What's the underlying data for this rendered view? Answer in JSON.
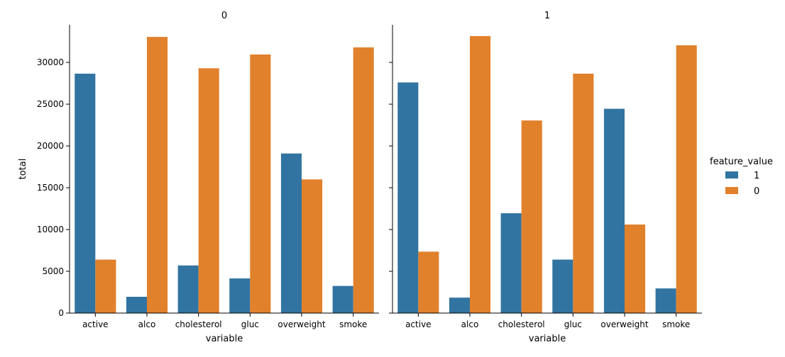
{
  "chart_data": [
    {
      "type": "bar",
      "title": "0",
      "xlabel": "variable",
      "ylabel": "total",
      "categories": [
        "active",
        "alco",
        "cholesterol",
        "gluc",
        "overweight",
        "smoke"
      ],
      "ylim": [
        0,
        34500
      ],
      "yticks": [
        0,
        5000,
        10000,
        15000,
        20000,
        25000,
        30000
      ],
      "series": [
        {
          "name": "1",
          "color": "#3274a1",
          "values": [
            28650,
            1950,
            5700,
            4150,
            19100,
            3250
          ]
        },
        {
          "name": "0",
          "color": "#e1812c",
          "values": [
            6400,
            33050,
            29300,
            30950,
            16000,
            31800
          ]
        }
      ]
    },
    {
      "type": "bar",
      "title": "1",
      "xlabel": "variable",
      "ylabel": "",
      "categories": [
        "active",
        "alco",
        "cholesterol",
        "gluc",
        "overweight",
        "smoke"
      ],
      "ylim": [
        0,
        34500
      ],
      "yticks": [
        0,
        5000,
        10000,
        15000,
        20000,
        25000,
        30000
      ],
      "series": [
        {
          "name": "1",
          "color": "#3274a1",
          "values": [
            27600,
            1850,
            11950,
            6400,
            24450,
            2950
          ]
        },
        {
          "name": "0",
          "color": "#e1812c",
          "values": [
            7350,
            33150,
            23050,
            28650,
            10600,
            32050
          ]
        }
      ]
    }
  ],
  "legend": {
    "title": "feature_value",
    "placement": "right",
    "entries": [
      {
        "label": "1",
        "color": "#3274a1"
      },
      {
        "label": "0",
        "color": "#e1812c"
      }
    ]
  }
}
